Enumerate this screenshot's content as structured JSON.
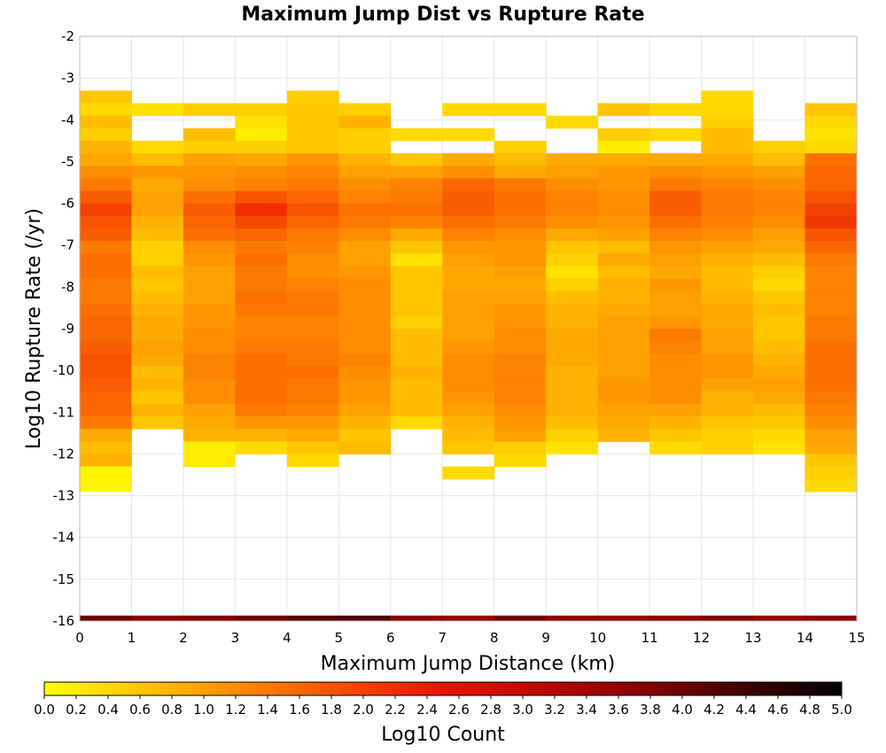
{
  "chart_data": {
    "type": "heatmap",
    "title": "Maximum Jump Dist vs Rupture Rate",
    "xlabel": "Maximum Jump Distance (km)",
    "ylabel": "Log10 Rupture Rate (/yr)",
    "xlim": [
      0,
      15
    ],
    "ylim": [
      -16,
      -2
    ],
    "x_ticks": [
      "0",
      "1",
      "2",
      "3",
      "4",
      "5",
      "6",
      "7",
      "8",
      "9",
      "10",
      "11",
      "12",
      "13",
      "14",
      "15"
    ],
    "y_ticks": [
      "-2",
      "-3",
      "-4",
      "-5",
      "-6",
      "-7",
      "-8",
      "-9",
      "-10",
      "-11",
      "-12",
      "-13",
      "-14",
      "-15",
      "-16"
    ],
    "grid": true,
    "x_bin_width": 1,
    "y_bin_height": 0.3,
    "colorbar": {
      "label": "Log10 Count",
      "range": [
        0,
        5
      ],
      "ticks": [
        "0.0",
        "0.2",
        "0.4",
        "0.6",
        "0.8",
        "1.0",
        "1.2",
        "1.4",
        "1.6",
        "1.8",
        "2.0",
        "2.2",
        "2.4",
        "2.6",
        "2.8",
        "3.0",
        "3.2",
        "3.4",
        "3.6",
        "3.8",
        "4.0",
        "4.2",
        "4.4",
        "4.6",
        "4.8",
        "5.0"
      ],
      "colors": [
        "#ffff00",
        "#ff8800",
        "#ee1100",
        "#880000",
        "#000000"
      ]
    },
    "y_bin_centers": [
      -3.45,
      -3.75,
      -4.05,
      -4.35,
      -4.65,
      -4.95,
      -5.25,
      -5.55,
      -5.85,
      -6.15,
      -6.45,
      -6.75,
      -7.05,
      -7.35,
      -7.65,
      -7.95,
      -8.25,
      -8.55,
      -8.85,
      -9.15,
      -9.45,
      -9.75,
      -10.05,
      -10.35,
      -10.65,
      -10.95,
      -11.25,
      -11.55,
      -11.85,
      -12.15,
      -12.45,
      -12.75
    ],
    "columns": [
      {
        "x": 0.5,
        "values": [
          0.6,
          0.4,
          0.7,
          0.5,
          0.8,
          0.9,
          1.2,
          1.4,
          1.7,
          2.0,
          1.8,
          1.7,
          1.4,
          1.5,
          1.5,
          1.4,
          1.4,
          1.5,
          1.6,
          1.6,
          1.7,
          1.8,
          1.8,
          1.7,
          1.6,
          1.6,
          1.4,
          0.9,
          0.7,
          0.8,
          0.1,
          0.1
        ]
      },
      {
        "x": 1.5,
        "values": [
          null,
          0.3,
          null,
          null,
          0.4,
          0.7,
          1.1,
          0.9,
          1.0,
          1.0,
          0.8,
          0.7,
          0.5,
          0.5,
          0.7,
          0.6,
          0.7,
          0.8,
          0.9,
          0.9,
          1.0,
          0.9,
          0.7,
          0.8,
          0.6,
          0.8,
          0.6,
          null,
          null,
          null,
          null,
          null
        ]
      },
      {
        "x": 2.5,
        "values": [
          null,
          0.5,
          null,
          0.7,
          0.5,
          1.0,
          1.1,
          1.2,
          1.5,
          1.7,
          1.6,
          1.5,
          1.2,
          1.1,
          1.0,
          1.0,
          1.0,
          1.1,
          1.1,
          1.2,
          1.2,
          1.3,
          1.3,
          1.2,
          1.2,
          1.0,
          0.9,
          0.8,
          0.2,
          0.2,
          null,
          null
        ]
      },
      {
        "x": 3.5,
        "values": [
          null,
          0.5,
          0.3,
          0.2,
          0.5,
          0.9,
          1.2,
          1.3,
          1.8,
          2.2,
          1.9,
          1.6,
          1.4,
          1.5,
          1.4,
          1.4,
          1.5,
          1.4,
          1.3,
          1.3,
          1.4,
          1.5,
          1.5,
          1.5,
          1.5,
          1.4,
          1.1,
          0.8,
          0.4,
          null,
          null,
          null
        ]
      },
      {
        "x": 4.5,
        "values": [
          0.5,
          0.6,
          0.6,
          0.6,
          0.6,
          1.1,
          1.3,
          1.4,
          1.6,
          1.8,
          1.6,
          1.4,
          1.3,
          1.2,
          1.2,
          1.3,
          1.4,
          1.4,
          1.3,
          1.3,
          1.4,
          1.4,
          1.5,
          1.4,
          1.4,
          1.3,
          1.1,
          0.9,
          0.6,
          0.4,
          null,
          null
        ]
      },
      {
        "x": 5.5,
        "values": [
          null,
          0.5,
          0.8,
          0.5,
          0.5,
          0.8,
          1.0,
          1.2,
          1.3,
          1.5,
          1.4,
          1.2,
          1.0,
          1.0,
          1.1,
          1.2,
          1.2,
          1.2,
          1.2,
          1.2,
          1.2,
          1.3,
          1.2,
          1.1,
          1.1,
          1.0,
          0.8,
          0.6,
          0.7,
          null,
          null,
          null
        ]
      },
      {
        "x": 6.5,
        "values": [
          null,
          null,
          null,
          0.4,
          null,
          0.6,
          1.0,
          1.3,
          1.4,
          1.5,
          1.3,
          0.9,
          0.6,
          0.3,
          0.6,
          0.6,
          0.6,
          0.6,
          0.5,
          0.7,
          0.7,
          0.7,
          0.8,
          0.7,
          0.7,
          0.7,
          0.4,
          null,
          null,
          null,
          null,
          null
        ]
      },
      {
        "x": 7.5,
        "values": [
          null,
          0.4,
          null,
          0.4,
          null,
          0.9,
          1.2,
          1.6,
          1.7,
          1.7,
          1.5,
          1.3,
          1.1,
          1.0,
          0.9,
          0.9,
          1.0,
          1.0,
          1.0,
          1.0,
          1.1,
          1.2,
          1.2,
          1.2,
          1.1,
          1.0,
          0.8,
          0.7,
          0.6,
          null,
          0.4,
          null
        ]
      },
      {
        "x": 8.5,
        "values": [
          null,
          0.4,
          null,
          null,
          0.5,
          0.7,
          0.9,
          1.4,
          1.5,
          1.5,
          1.4,
          1.2,
          1.1,
          1.1,
          1.0,
          0.9,
          1.0,
          1.1,
          1.1,
          1.2,
          1.2,
          1.3,
          1.3,
          1.3,
          1.3,
          1.2,
          1.1,
          1.0,
          0.5,
          0.4,
          null,
          null
        ]
      },
      {
        "x": 9.5,
        "values": [
          null,
          null,
          0.4,
          null,
          null,
          0.9,
          1.0,
          1.2,
          1.3,
          1.3,
          1.2,
          0.9,
          0.6,
          0.5,
          0.3,
          0.5,
          0.7,
          0.8,
          0.8,
          0.9,
          0.9,
          0.9,
          0.8,
          0.8,
          0.8,
          0.8,
          0.7,
          0.5,
          0.3,
          null,
          null,
          null
        ]
      },
      {
        "x": 10.5,
        "values": [
          null,
          0.6,
          null,
          0.5,
          0.2,
          0.9,
          1.1,
          1.1,
          1.2,
          1.2,
          1.1,
          1.0,
          0.7,
          0.9,
          0.7,
          0.8,
          0.8,
          0.9,
          1.0,
          1.0,
          1.0,
          1.0,
          1.0,
          1.1,
          1.1,
          1.0,
          0.9,
          0.8,
          null,
          null,
          null,
          null
        ]
      },
      {
        "x": 11.5,
        "values": [
          null,
          0.4,
          null,
          0.4,
          null,
          0.9,
          1.2,
          1.4,
          1.7,
          1.7,
          1.5,
          1.3,
          1.1,
          1.0,
          0.9,
          1.1,
          1.0,
          1.0,
          1.1,
          1.4,
          1.3,
          1.2,
          1.2,
          1.2,
          1.2,
          1.0,
          0.8,
          0.6,
          0.4,
          null,
          null,
          null
        ]
      },
      {
        "x": 12.5,
        "values": [
          0.4,
          0.4,
          0.5,
          0.7,
          0.7,
          0.9,
          1.1,
          1.3,
          1.4,
          1.4,
          1.3,
          1.2,
          1.0,
          0.8,
          0.7,
          0.7,
          0.8,
          0.9,
          0.9,
          1.0,
          1.0,
          1.1,
          1.1,
          1.0,
          0.8,
          0.8,
          0.6,
          0.5,
          0.5,
          null,
          null,
          null
        ]
      },
      {
        "x": 13.5,
        "values": [
          null,
          null,
          null,
          null,
          0.5,
          0.7,
          1.0,
          1.2,
          1.3,
          1.3,
          1.2,
          1.0,
          0.9,
          0.7,
          0.5,
          0.4,
          0.6,
          0.7,
          0.6,
          0.6,
          0.7,
          0.8,
          0.9,
          1.0,
          0.9,
          0.7,
          0.6,
          0.4,
          0.3,
          null,
          null,
          null
        ]
      },
      {
        "x": 14.5,
        "values": [
          null,
          0.6,
          0.4,
          0.3,
          0.4,
          1.5,
          1.6,
          1.6,
          1.8,
          2.0,
          2.1,
          1.8,
          1.6,
          1.4,
          1.3,
          1.3,
          1.3,
          1.3,
          1.4,
          1.4,
          1.5,
          1.5,
          1.5,
          1.5,
          1.4,
          1.3,
          1.2,
          1.0,
          0.9,
          0.6,
          0.5,
          0.4
        ]
      }
    ],
    "bottom_row": {
      "y_center": -15.95,
      "values": [
        4.0,
        3.7,
        3.8,
        4.0,
        4.2,
        4.3,
        3.7,
        3.5,
        3.9,
        3.6,
        3.5,
        3.6,
        3.8,
        3.5,
        3.7
      ]
    }
  }
}
